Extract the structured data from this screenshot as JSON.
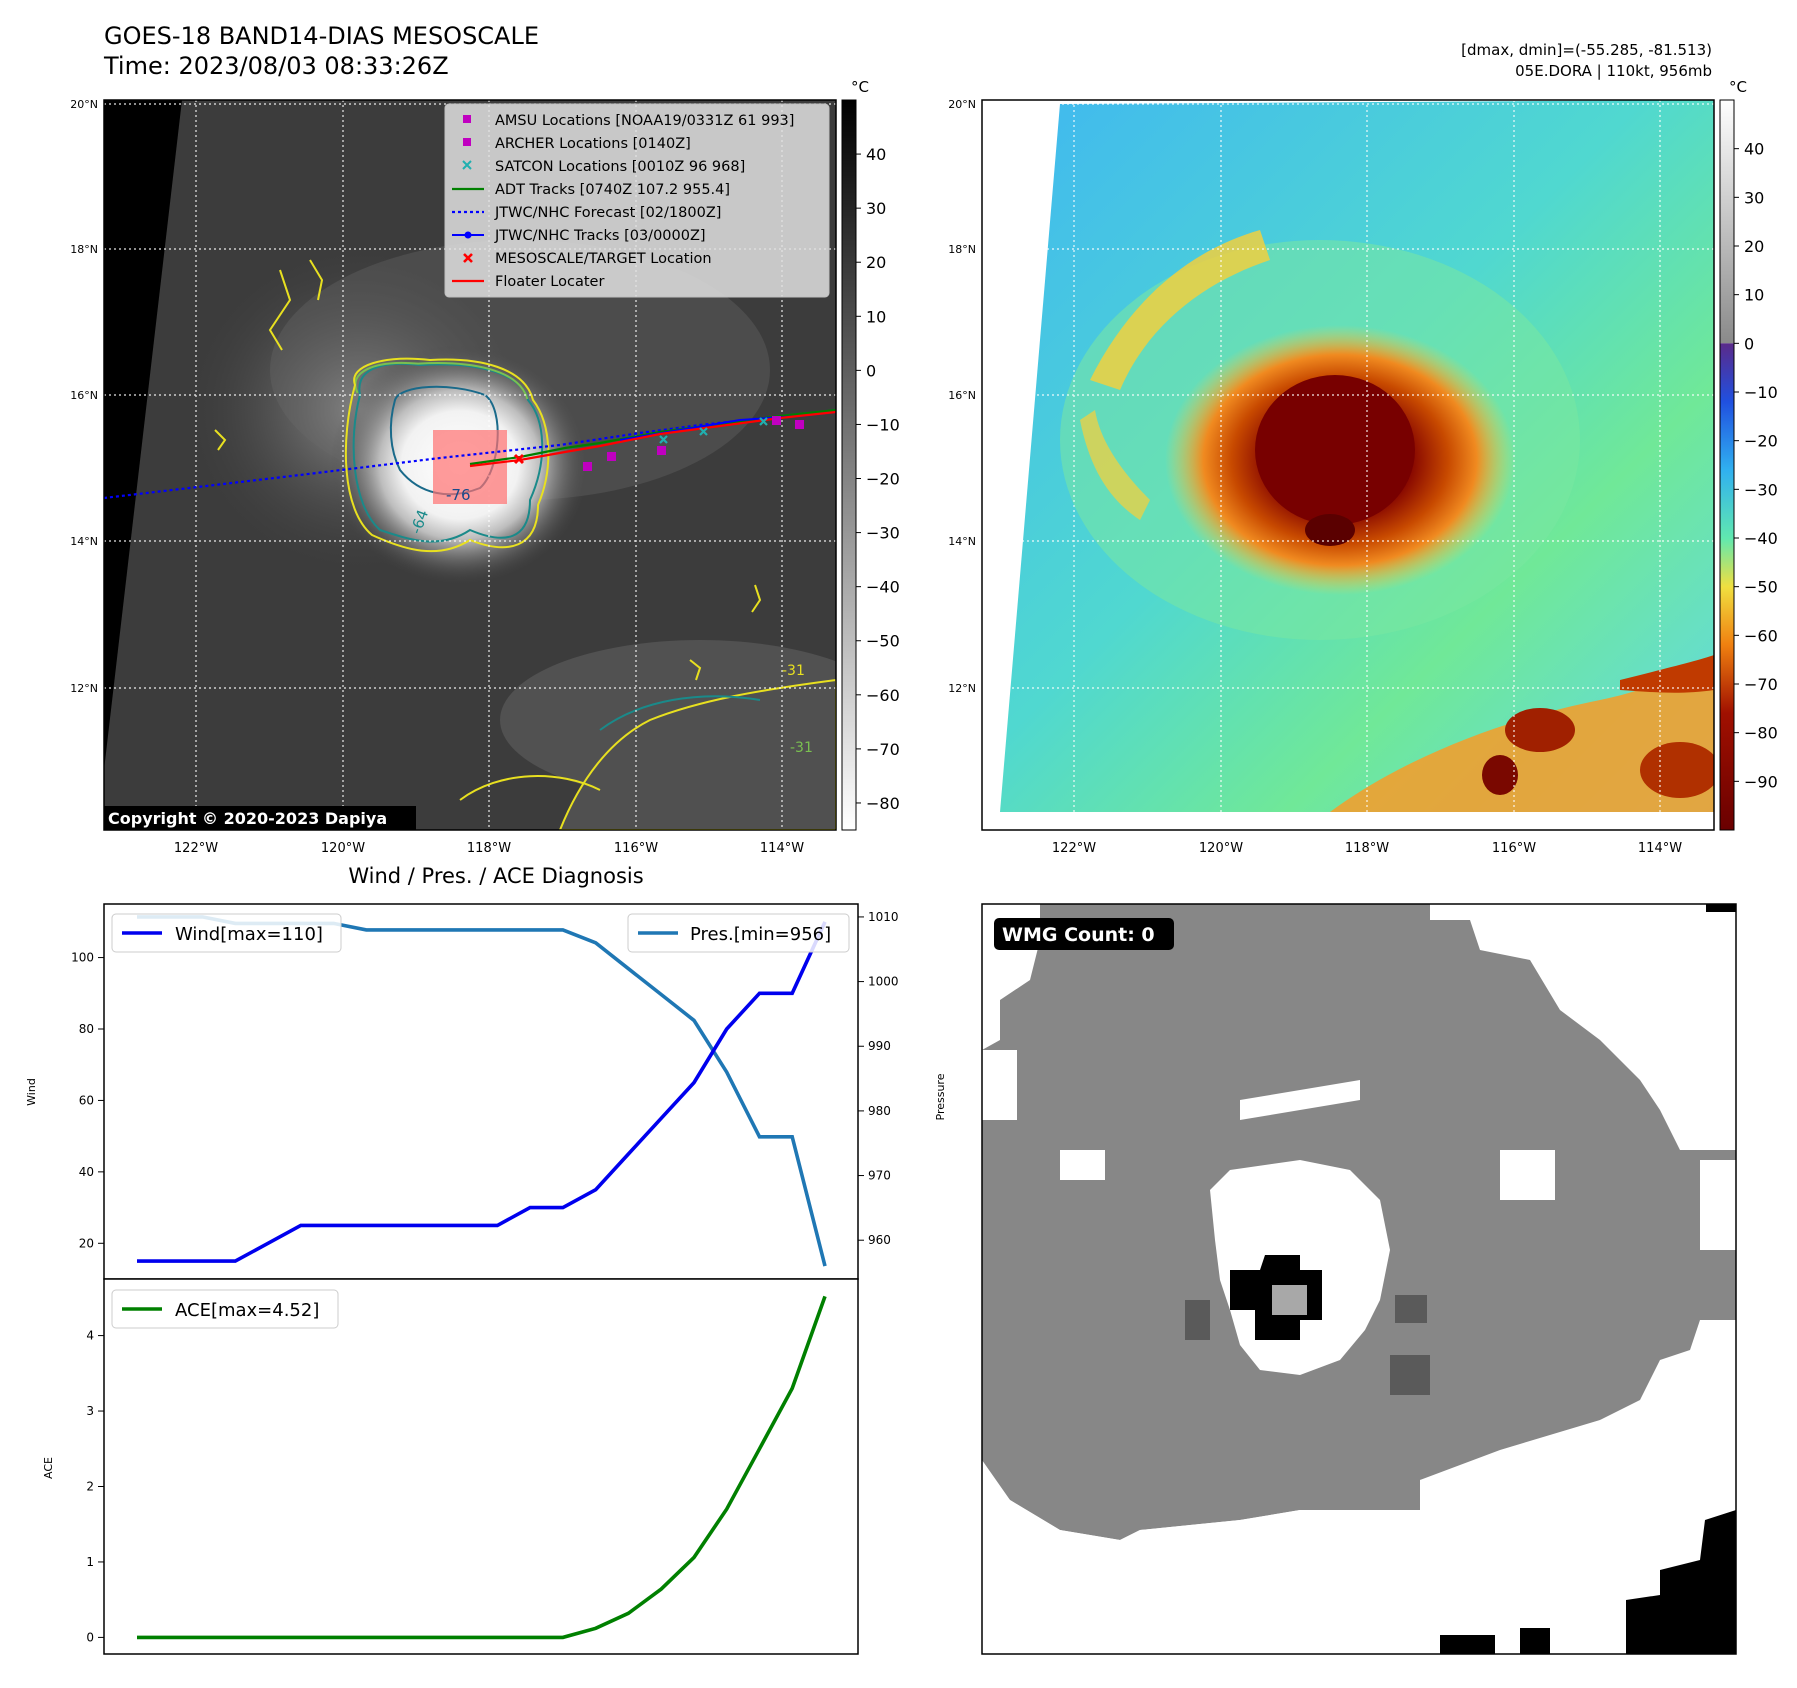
{
  "header": {
    "title": "GOES-18 BAND14-DIAS MESOSCALE",
    "time": "Time: 2023/08/03 08:33:26Z",
    "dmax_line": "[dmax, dmin]=(-55.285, -81.513)",
    "storm_line": "05E.DORA | 110kt, 956mb"
  },
  "colors": {
    "wind": "#0000ee",
    "pres": "#1f77b4",
    "ace": "#008000",
    "amsu": "#c000c0",
    "archer": "#c000c0",
    "satcon": "#20b0b0",
    "adt": "#008000",
    "forecast": "#0000ff",
    "tracks": "#0000ff",
    "target": "#ff0000",
    "floater": "#ff0000"
  },
  "icons": {
    "amsu": "square-marker-icon",
    "archer": "square-marker-icon",
    "satcon": "x-marker-icon",
    "target": "x-marker-icon"
  },
  "maps": {
    "x_ticks": [
      "122°W",
      "120°W",
      "118°W",
      "116°W",
      "114°W"
    ],
    "y_ticks": [
      "20°N",
      "18°N",
      "16°N",
      "14°N",
      "12°N"
    ],
    "lon_range": [
      -123.25,
      -113.25
    ],
    "lat_range": [
      10.0,
      20.0
    ],
    "copyright": "Copyright © 2020-2023 Dapiya",
    "ir_colorbar_unit": "°C",
    "ir_colorbar_ticks": [
      "40",
      "30",
      "20",
      "10",
      "0",
      "−10",
      "−20",
      "−30",
      "−40",
      "−50",
      "−60",
      "−70",
      "−80"
    ],
    "ir_colorbar_values": [
      40,
      30,
      20,
      10,
      0,
      -10,
      -20,
      -30,
      -40,
      -50,
      -60,
      -70,
      -80
    ],
    "ir_colorbar_range": [
      -85,
      50
    ],
    "dias_colorbar_unit": "°C",
    "dias_colorbar_ticks": [
      "40",
      "30",
      "20",
      "10",
      "0",
      "−10",
      "−20",
      "−30",
      "−40",
      "−50",
      "−60",
      "−70",
      "−80",
      "−90"
    ],
    "dias_colorbar_values": [
      40,
      30,
      20,
      10,
      0,
      -10,
      -20,
      -30,
      -40,
      -50,
      -60,
      -70,
      -80,
      -90
    ],
    "dias_colorbar_range": [
      -100,
      50
    ],
    "contour_labels": [
      "-76",
      "-64",
      "-31",
      "-31"
    ],
    "legend": [
      "AMSU Locations [NOAA19/0331Z 61 993]",
      "ARCHER Locations [0140Z]",
      "SATCON Locations [0010Z 96 968]",
      "ADT Tracks [0740Z 107.2 955.4]",
      "JTWC/NHC Forecast [02/1800Z]",
      "JTWC/NHC Tracks [03/0000Z]",
      "MESOSCALE/TARGET Location",
      "Floater Locater"
    ]
  },
  "diagnosis": {
    "title": "Wind / Pres. / ACE Diagnosis",
    "wind_ylabel": "Wind",
    "pres_ylabel": "Pressure",
    "ace_ylabel": "ACE",
    "wind_legend": "Wind[max=110]",
    "pres_legend": "Pres.[min=956]",
    "ace_legend": "ACE[max=4.52]",
    "wind_ticks": [
      "20",
      "40",
      "60",
      "80",
      "100"
    ],
    "pres_ticks": [
      "960",
      "970",
      "980",
      "990",
      "1000",
      "1010"
    ],
    "ace_ticks": [
      "0",
      "1",
      "2",
      "3",
      "4"
    ]
  },
  "wmg": {
    "label": "WMG Count: 0"
  },
  "chart_data": [
    {
      "type": "line",
      "x": [
        0,
        1,
        2,
        3,
        4,
        5,
        6,
        7,
        8,
        9,
        10,
        11,
        12,
        13,
        14,
        15,
        16,
        17,
        18,
        19,
        20,
        21
      ],
      "series": [
        {
          "name": "Wind[max=110]",
          "axis": "left",
          "values": [
            15,
            15,
            15,
            15,
            20,
            25,
            25,
            25,
            25,
            25,
            25,
            25,
            30,
            30,
            35,
            45,
            55,
            65,
            80,
            90,
            90,
            110
          ]
        },
        {
          "name": "Pres.[min=956]",
          "axis": "right",
          "values": [
            1010,
            1010,
            1010,
            1009,
            1009,
            1009,
            1009,
            1008,
            1008,
            1008,
            1008,
            1008,
            1008,
            1008,
            1006,
            1002,
            998,
            994,
            986,
            976,
            976,
            956
          ]
        }
      ],
      "ylabel": "Wind",
      "y2label": "Pressure",
      "ylim": [
        10,
        115
      ],
      "y2lim": [
        954,
        1012
      ],
      "legend": [
        "top-left",
        "top-right"
      ]
    },
    {
      "type": "line",
      "x": [
        0,
        1,
        2,
        3,
        4,
        5,
        6,
        7,
        8,
        9,
        10,
        11,
        12,
        13,
        14,
        15,
        16,
        17,
        18,
        19,
        20,
        21
      ],
      "series": [
        {
          "name": "ACE[max=4.52]",
          "values": [
            0,
            0,
            0,
            0,
            0,
            0,
            0,
            0,
            0,
            0,
            0,
            0,
            0,
            0,
            0.12,
            0.32,
            0.64,
            1.06,
            1.7,
            2.5,
            3.3,
            4.52
          ]
        }
      ],
      "ylabel": "ACE",
      "ylim": [
        -0.22,
        4.75
      ],
      "legend": "top-left"
    }
  ]
}
